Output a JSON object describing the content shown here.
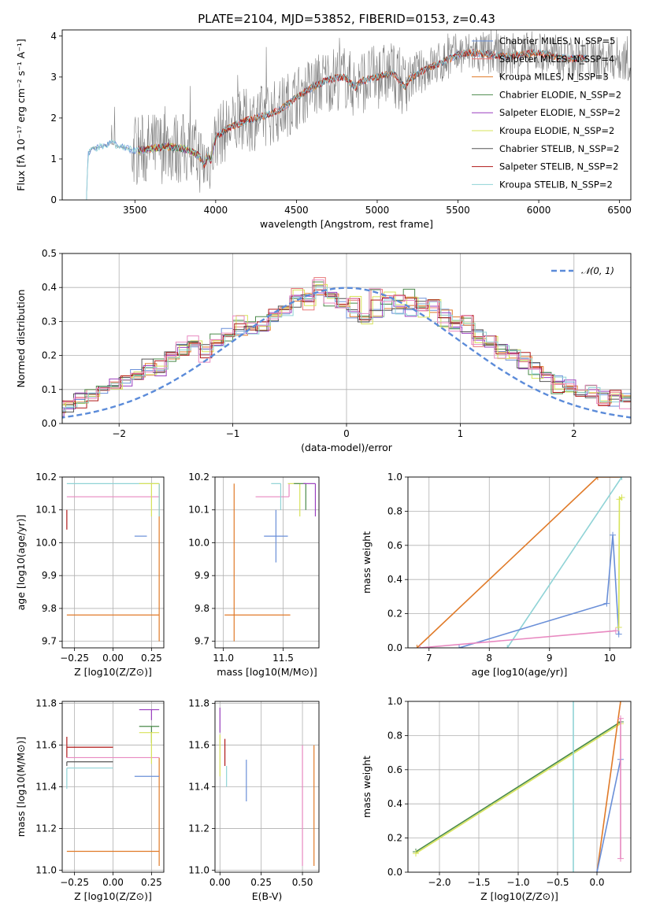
{
  "figure": {
    "title": "PLATE=2104, MJD=53852, FIBERID=0153, z=0.43",
    "colors": {
      "chabrier_miles": "#6a8fd8",
      "salpeter_miles": "#e87878",
      "kroupa_miles": "#e07a28",
      "chabrier_elodie": "#4a8a4a",
      "salpeter_elodie": "#9a3fbf",
      "kroupa_elodie": "#d7e35a",
      "chabrier_stelib": "#555555",
      "salpeter_stelib": "#b01818",
      "kroupa_stelib": "#8fd3d6",
      "data": "#808080",
      "pink": "#e888c0",
      "gaussian": "#5b8bd9"
    }
  },
  "chart_data": [
    {
      "id": "spectrum",
      "type": "line",
      "xlabel": "wavelength [Angstrom, rest frame]",
      "ylabel": "Flux [fλ 10⁻¹⁷ erg cm⁻² s⁻¹ A⁻¹]",
      "xlim": [
        3050,
        6570
      ],
      "ylim": [
        0,
        4.15
      ],
      "xticks": [
        "3500",
        "4000",
        "4500",
        "5000",
        "5500",
        "6000",
        "6500"
      ],
      "yticks": [
        "0",
        "1",
        "2",
        "3",
        "4"
      ],
      "legend_placement": "right",
      "legend": [
        "Chabrier MILES, N_SSP=5",
        "Salpeter MILES, N_SSP=4",
        "Kroupa MILES, N_SSP=3",
        "Chabrier ELODIE, N_SSP=2",
        "Salpeter ELODIE, N_SSP=2",
        "Kroupa ELODIE, N_SSP=2",
        "Chabrier STELIB, N_SSP=2",
        "Salpeter STELIB, N_SSP=2",
        "Kroupa STELIB, N_SSP=2"
      ],
      "model_continuum": {
        "x": [
          3200,
          3210,
          3230,
          3300,
          3350,
          3400,
          3450,
          3500,
          3600,
          3700,
          3800,
          3850,
          3900,
          3930,
          3950,
          3970,
          4000,
          4100,
          4200,
          4300,
          4400,
          4500,
          4600,
          4700,
          4800,
          4862,
          4900,
          5000,
          5100,
          5175,
          5200,
          5300,
          5400,
          5500,
          5600,
          5700,
          5800,
          5900,
          6000,
          6100,
          6200
        ],
        "y": [
          0.0,
          1.1,
          1.25,
          1.3,
          1.4,
          1.3,
          1.25,
          1.2,
          1.25,
          1.3,
          1.25,
          1.2,
          1.05,
          0.85,
          1.1,
          0.95,
          1.55,
          1.8,
          1.95,
          2.05,
          2.2,
          2.5,
          2.75,
          2.95,
          3.0,
          2.75,
          2.9,
          3.0,
          3.1,
          2.75,
          2.95,
          3.2,
          3.35,
          3.55,
          3.6,
          3.55,
          3.5,
          3.55,
          3.6,
          3.5,
          3.45
        ]
      }
    },
    {
      "id": "residuals",
      "type": "histogram",
      "xlabel": "(data-model)/error",
      "ylabel": "Normed distribution",
      "xlim": [
        -2.5,
        2.5
      ],
      "ylim": [
        0,
        0.5
      ],
      "xticks": [
        "−2",
        "−1",
        "0",
        "1",
        "2"
      ],
      "yticks": [
        "0.0",
        "0.1",
        "0.2",
        "0.3",
        "0.4",
        "0.5"
      ],
      "legend_placement": "top-right",
      "legend": [
        "𝒩(0, 1)"
      ],
      "bin_width": 0.1,
      "series": [
        {
          "values": [
            0.02,
            0.02,
            0.02,
            0.03,
            0.04,
            0.05,
            0.07,
            0.08,
            0.09,
            0.12,
            0.13,
            0.15,
            0.17,
            0.16,
            0.2,
            0.22,
            0.23,
            0.22,
            0.24,
            0.27,
            0.26,
            0.28,
            0.29,
            0.31,
            0.33,
            0.36,
            0.38,
            0.39,
            0.37,
            0.35,
            0.33,
            0.31,
            0.32,
            0.35,
            0.34,
            0.33,
            0.35,
            0.34,
            0.32,
            0.3,
            0.28,
            0.26,
            0.24,
            0.22,
            0.2,
            0.18,
            0.16,
            0.14,
            0.12,
            0.11,
            0.1,
            0.09,
            0.08,
            0.07,
            0.07,
            0.06,
            0.06,
            0.05,
            0.05,
            0.05
          ]
        },
        {
          "values": [
            0.01,
            0.02,
            0.03,
            0.04,
            0.05,
            0.06,
            0.06,
            0.08,
            0.1,
            0.11,
            0.14,
            0.14,
            0.16,
            0.17,
            0.19,
            0.22,
            0.24,
            0.2,
            0.25,
            0.26,
            0.3,
            0.29,
            0.3,
            0.32,
            0.34,
            0.38,
            0.35,
            0.41,
            0.36,
            0.34,
            0.36,
            0.31,
            0.38,
            0.37,
            0.36,
            0.38,
            0.33,
            0.35,
            0.3,
            0.29,
            0.3,
            0.24,
            0.25,
            0.21,
            0.2,
            0.19,
            0.15,
            0.15,
            0.1,
            0.11,
            0.09,
            0.1,
            0.07,
            0.08,
            0.06,
            0.07,
            0.04,
            0.05,
            0.03,
            0.04
          ]
        }
      ],
      "gaussian": {
        "mu": 0,
        "sigma": 1
      }
    },
    {
      "id": "age_vs_Z",
      "type": "scatter",
      "xlabel": "Z [log10(Z/Z⊙)]",
      "ylabel": "age  [log10(age/yr)]",
      "xlim": [
        -0.33,
        0.33
      ],
      "ylim": [
        9.68,
        10.2
      ],
      "xticks": [
        "−0.25",
        "0.00",
        "0.25"
      ],
      "yticks": [
        "9.7",
        "9.8",
        "9.9",
        "10.0",
        "10.1",
        "10.2"
      ],
      "points": [
        {
          "x": 0.3,
          "y": 9.78,
          "xerr": [
            0.6,
            0
          ],
          "yerr": [
            0.08,
            0.4
          ],
          "color": "#e07a28"
        },
        {
          "x": 0.22,
          "y": 10.02,
          "xerr": [
            0.08,
            0
          ],
          "yerr": [
            0,
            0
          ],
          "color": "#6a8fd8"
        },
        {
          "x": 0.3,
          "y": 10.14,
          "xerr": [
            0.6,
            0
          ],
          "yerr": [
            0,
            0
          ],
          "color": "#e888c0"
        },
        {
          "x": 0.3,
          "y": 10.18,
          "xerr": [
            0.6,
            0
          ],
          "yerr": [
            0.1,
            0
          ],
          "color": "#8fd3d6"
        },
        {
          "x": 0.25,
          "y": 10.18,
          "xerr": [
            0.08,
            0.05
          ],
          "yerr": [
            0.1,
            0
          ],
          "color": "#d7e35a"
        },
        {
          "x": -0.3,
          "y": 10.1,
          "xerr": [
            0,
            0
          ],
          "yerr": [
            0.06,
            0
          ],
          "color": "#b01818"
        }
      ]
    },
    {
      "id": "age_vs_mass",
      "type": "scatter",
      "xlabel": "mass [log10(M/M⊙)]",
      "ylabel": "",
      "xlim": [
        10.93,
        11.8
      ],
      "ylim": [
        9.68,
        10.2
      ],
      "xticks": [
        "11.0",
        "11.5"
      ],
      "yticks": [
        "9.7",
        "9.8",
        "9.9",
        "10.0",
        "10.1",
        "10.2"
      ],
      "points": [
        {
          "x": 11.09,
          "y": 9.78,
          "xerr": [
            0.08,
            0.47
          ],
          "yerr": [
            0.08,
            0.4
          ],
          "color": "#e07a28"
        },
        {
          "x": 11.44,
          "y": 10.02,
          "xerr": [
            0.1,
            0.1
          ],
          "yerr": [
            0.08,
            0.08
          ],
          "color": "#6a8fd8"
        },
        {
          "x": 11.55,
          "y": 10.14,
          "xerr": [
            0.28,
            0
          ],
          "yerr": [
            0,
            0.04
          ],
          "color": "#e888c0"
        },
        {
          "x": 11.48,
          "y": 10.18,
          "xerr": [
            0.08,
            0
          ],
          "yerr": [
            0.08,
            0
          ],
          "color": "#8fd3d6"
        },
        {
          "x": 11.64,
          "y": 10.18,
          "xerr": [
            0.1,
            0
          ],
          "yerr": [
            0.1,
            0
          ],
          "color": "#d7e35a"
        },
        {
          "x": 11.69,
          "y": 10.18,
          "xerr": [
            0.1,
            0
          ],
          "yerr": [
            0.08,
            0
          ],
          "color": "#4a8a4a"
        },
        {
          "x": 11.77,
          "y": 10.18,
          "xerr": [
            0.1,
            0
          ],
          "yerr": [
            0.1,
            0
          ],
          "color": "#9a3fbf"
        }
      ]
    },
    {
      "id": "massweight_vs_age",
      "type": "line",
      "xlabel": "age  [log10(age/yr)]",
      "ylabel": "mass weight",
      "xlim": [
        6.65,
        10.35
      ],
      "ylim": [
        0,
        1
      ],
      "xticks": [
        "7",
        "8",
        "9",
        "10"
      ],
      "yticks": [
        "0.0",
        "0.2",
        "0.4",
        "0.6",
        "0.8",
        "1.0"
      ],
      "series": [
        {
          "color": "#e07a28",
          "x": [
            6.8,
            9.8,
            10.2
          ],
          "y": [
            0.0,
            1.0,
            1.0
          ]
        },
        {
          "color": "#8fd3d6",
          "x": [
            8.3,
            10.2
          ],
          "y": [
            0.0,
            1.0
          ]
        },
        {
          "color": "#6a8fd8",
          "x": [
            7.5,
            9.95,
            10.05,
            10.15
          ],
          "y": [
            0.0,
            0.26,
            0.66,
            0.08
          ]
        },
        {
          "color": "#e888c0",
          "x": [
            6.85,
            10.1
          ],
          "y": [
            0.0,
            0.1
          ]
        },
        {
          "color": "#d7e35a",
          "x": [
            10.15,
            10.16,
            10.2
          ],
          "y": [
            0.12,
            0.87,
            0.88
          ]
        }
      ]
    },
    {
      "id": "mass_vs_Z",
      "type": "scatter",
      "xlabel": "Z [log10(Z/Z⊙)]",
      "ylabel": "mass [log10(M/M⊙)]",
      "xlim": [
        -0.33,
        0.33
      ],
      "ylim": [
        10.99,
        11.81
      ],
      "xticks": [
        "−0.25",
        "0.00",
        "0.25"
      ],
      "yticks": [
        "11.0",
        "11.2",
        "11.4",
        "11.6",
        "11.8"
      ],
      "points": [
        {
          "x": 0.3,
          "y": 11.09,
          "xerr": [
            0.6,
            0
          ],
          "yerr": [
            0.07,
            0.45
          ],
          "color": "#e07a28"
        },
        {
          "x": -0.3,
          "y": 11.59,
          "xerr": [
            0,
            0.3
          ],
          "yerr": [
            0.05,
            0.05
          ],
          "color": "#b01818"
        },
        {
          "x": -0.3,
          "y": 11.54,
          "xerr": [
            0,
            0.6
          ],
          "yerr": [
            0,
            0
          ],
          "color": "#e888c0"
        },
        {
          "x": -0.3,
          "y": 11.52,
          "xerr": [
            0,
            0.3
          ],
          "yerr": [
            0.02,
            0
          ],
          "color": "#555555"
        },
        {
          "x": -0.3,
          "y": 11.49,
          "xerr": [
            0,
            0.3
          ],
          "yerr": [
            0.1,
            0
          ],
          "color": "#8fd3d6"
        },
        {
          "x": 0.22,
          "y": 11.45,
          "xerr": [
            0.08,
            0.08
          ],
          "yerr": [
            0,
            0
          ],
          "color": "#6a8fd8"
        },
        {
          "x": 0.25,
          "y": 11.69,
          "xerr": [
            0.08,
            0.05
          ],
          "yerr": [
            0.08,
            0
          ],
          "color": "#4a8a4a"
        },
        {
          "x": 0.25,
          "y": 11.77,
          "xerr": [
            0.08,
            0.05
          ],
          "yerr": [
            0.05,
            0
          ],
          "color": "#9a3fbf"
        },
        {
          "x": 0.25,
          "y": 11.66,
          "xerr": [
            0.08,
            0.05
          ],
          "yerr": [
            0.15,
            0
          ],
          "color": "#d7e35a"
        }
      ]
    },
    {
      "id": "mass_vs_ebv",
      "type": "scatter",
      "xlabel": "E(B-V)",
      "ylabel": "",
      "xlim": [
        -0.03,
        0.6
      ],
      "ylim": [
        10.99,
        11.81
      ],
      "xticks": [
        "0.00",
        "0.25",
        "0.50"
      ],
      "yticks": [
        "11.0",
        "11.2",
        "11.4",
        "11.6",
        "11.8"
      ],
      "points": [
        {
          "x": 0.57,
          "y": 11.3,
          "xerr": [
            0,
            0
          ],
          "yerr": [
            0.28,
            0.3
          ],
          "color": "#e07a28"
        },
        {
          "x": 0.5,
          "y": 11.3,
          "xerr": [
            0,
            0
          ],
          "yerr": [
            0.28,
            0.3
          ],
          "color": "#e888c0"
        },
        {
          "x": 0.16,
          "y": 11.43,
          "xerr": [
            0,
            0
          ],
          "yerr": [
            0.1,
            0.1
          ],
          "color": "#6a8fd8"
        },
        {
          "x": 0.0,
          "y": 11.7,
          "xerr": [
            0,
            0
          ],
          "yerr": [
            0.04,
            0.08
          ],
          "color": "#9a3fbf"
        },
        {
          "x": 0.0,
          "y": 11.55,
          "xerr": [
            0,
            0
          ],
          "yerr": [
            0.1,
            0.1
          ],
          "color": "#d7e35a"
        },
        {
          "x": 0.03,
          "y": 11.55,
          "xerr": [
            0,
            0
          ],
          "yerr": [
            0.05,
            0.08
          ],
          "color": "#b01818"
        },
        {
          "x": 0.04,
          "y": 11.45,
          "xerr": [
            0,
            0
          ],
          "yerr": [
            0.05,
            0.05
          ],
          "color": "#8fd3d6"
        }
      ]
    },
    {
      "id": "massweight_vs_Z",
      "type": "line",
      "xlabel": "Z [log10(Z/Z⊙)]",
      "ylabel": "mass weight",
      "xlim": [
        -2.4,
        0.43
      ],
      "ylim": [
        0,
        1
      ],
      "xticks": [
        "−2.0",
        "−1.5",
        "−1.0",
        "−0.5",
        "0.0"
      ],
      "yticks": [
        "0.0",
        "0.2",
        "0.4",
        "0.6",
        "0.8",
        "1.0"
      ],
      "series": [
        {
          "color": "#4a8a4a",
          "x": [
            -2.3,
            0.3
          ],
          "y": [
            0.12,
            0.88
          ]
        },
        {
          "color": "#d7e35a",
          "x": [
            -2.3,
            0.3
          ],
          "y": [
            0.11,
            0.87
          ]
        },
        {
          "color": "#8fd3d6",
          "x": [
            -0.3,
            -0.3
          ],
          "y": [
            0.0,
            1.0
          ]
        },
        {
          "color": "#e07a28",
          "x": [
            0.0,
            0.3
          ],
          "y": [
            0.0,
            1.0
          ]
        },
        {
          "color": "#6a8fd8",
          "x": [
            0.0,
            0.3
          ],
          "y": [
            0.0,
            0.66
          ]
        },
        {
          "color": "#e888c0",
          "x": [
            0.3,
            0.3
          ],
          "y": [
            0.08,
            0.9
          ]
        }
      ]
    }
  ]
}
